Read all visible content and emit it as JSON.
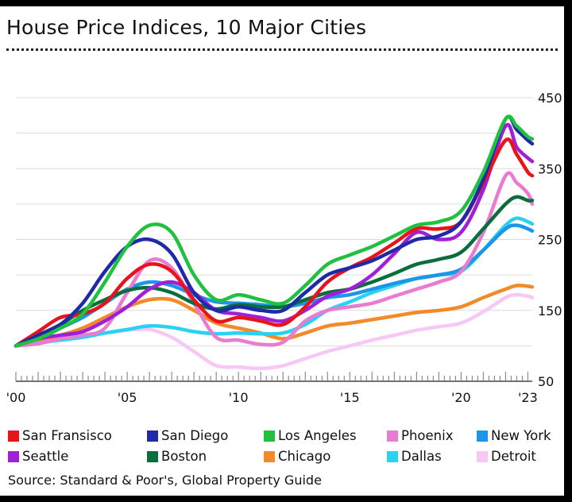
{
  "header": {
    "title": "House Price Indices, 10 Major Cities",
    "source": "Source: Standard & Poor's, Global Property Guide"
  },
  "chart_data": {
    "type": "line",
    "title": "House Price Indices, 10 Major Cities",
    "xlabel": "",
    "ylabel": "",
    "xlim": [
      2000,
      2023.2
    ],
    "ylim": [
      50,
      450
    ],
    "y_ticks": [
      50,
      150,
      250,
      350,
      450
    ],
    "x_ticks": [
      {
        "value": 2000,
        "label": "'00"
      },
      {
        "value": 2005,
        "label": "'05"
      },
      {
        "value": 2010,
        "label": "'10"
      },
      {
        "value": 2015,
        "label": "'15"
      },
      {
        "value": 2020,
        "label": "'20"
      },
      {
        "value": 2023,
        "label": "'23"
      }
    ],
    "y_axis_side": "right",
    "grid": true,
    "legend_position": "bottom",
    "x": [
      2000,
      2001,
      2002,
      2003,
      2004,
      2005,
      2006,
      2007,
      2008,
      2009,
      2010,
      2011,
      2012,
      2013,
      2014,
      2015,
      2016,
      2017,
      2018,
      2019,
      2020,
      2021,
      2022,
      2022.5,
      2023,
      2023.2
    ],
    "series": [
      {
        "name": "San Fransisco",
        "color": "#e8141b",
        "values": [
          100,
          120,
          140,
          145,
          160,
          195,
          215,
          205,
          165,
          135,
          140,
          135,
          130,
          155,
          190,
          210,
          225,
          245,
          265,
          265,
          275,
          330,
          390,
          370,
          345,
          340
        ]
      },
      {
        "name": "Seattle",
        "color": "#a01fd8",
        "values": [
          100,
          110,
          115,
          120,
          135,
          155,
          180,
          190,
          175,
          150,
          145,
          140,
          135,
          150,
          170,
          180,
          200,
          230,
          260,
          250,
          260,
          320,
          410,
          380,
          365,
          360
        ]
      },
      {
        "name": "San Diego",
        "color": "#1f2aa8",
        "values": [
          100,
          115,
          130,
          160,
          205,
          240,
          250,
          230,
          175,
          150,
          155,
          150,
          150,
          175,
          200,
          210,
          220,
          235,
          250,
          255,
          275,
          335,
          420,
          405,
          390,
          385
        ]
      },
      {
        "name": "Boston",
        "color": "#0a6e3c",
        "values": [
          100,
          115,
          130,
          150,
          165,
          178,
          182,
          175,
          160,
          152,
          158,
          155,
          155,
          165,
          175,
          180,
          190,
          202,
          215,
          222,
          232,
          265,
          300,
          310,
          305,
          305
        ]
      },
      {
        "name": "Los Angeles",
        "color": "#20c040",
        "values": [
          100,
          110,
          125,
          145,
          190,
          240,
          270,
          260,
          200,
          165,
          172,
          165,
          160,
          185,
          215,
          228,
          240,
          255,
          270,
          275,
          290,
          345,
          420,
          410,
          395,
          392
        ]
      },
      {
        "name": "Chicago",
        "color": "#f28a2a",
        "values": [
          100,
          108,
          115,
          125,
          140,
          155,
          165,
          165,
          150,
          132,
          125,
          118,
          110,
          118,
          128,
          132,
          137,
          142,
          147,
          150,
          155,
          168,
          180,
          185,
          184,
          183
        ]
      },
      {
        "name": "Phoenix",
        "color": "#e97bd0",
        "values": [
          100,
          103,
          110,
          115,
          125,
          175,
          220,
          210,
          160,
          112,
          108,
          102,
          105,
          135,
          150,
          155,
          160,
          170,
          180,
          190,
          205,
          260,
          340,
          330,
          315,
          300
        ]
      },
      {
        "name": "Dallas",
        "color": "#2ad2f2",
        "values": [
          100,
          104,
          108,
          112,
          118,
          123,
          128,
          126,
          120,
          117,
          118,
          117,
          118,
          130,
          150,
          162,
          175,
          185,
          195,
          200,
          205,
          235,
          270,
          280,
          275,
          272
        ]
      },
      {
        "name": "New York",
        "color": "#1d95e8",
        "values": [
          100,
          110,
          125,
          140,
          160,
          180,
          190,
          185,
          172,
          162,
          160,
          158,
          155,
          160,
          168,
          172,
          180,
          188,
          195,
          200,
          208,
          235,
          265,
          270,
          265,
          262
        ]
      },
      {
        "name": "Detroit",
        "color": "#f5c8f5",
        "values": [
          100,
          105,
          110,
          115,
          118,
          122,
          123,
          112,
          92,
          72,
          70,
          68,
          72,
          82,
          92,
          100,
          108,
          115,
          122,
          127,
          132,
          148,
          168,
          172,
          170,
          168
        ]
      }
    ]
  },
  "legend_rows": [
    [
      {
        "label": "San Fransisco",
        "color": "#e8141b"
      },
      {
        "label": "San Diego",
        "color": "#1f2aa8"
      },
      {
        "label": "Los Angeles",
        "color": "#20c040"
      },
      {
        "label": "Phoenix",
        "color": "#e97bd0"
      },
      {
        "label": "New York",
        "color": "#1d95e8"
      }
    ],
    [
      {
        "label": "Seattle",
        "color": "#a01fd8"
      },
      {
        "label": "Boston",
        "color": "#0a6e3c"
      },
      {
        "label": "Chicago",
        "color": "#f28a2a"
      },
      {
        "label": "Dallas",
        "color": "#2ad2f2"
      },
      {
        "label": "Detroit",
        "color": "#f5c8f5"
      }
    ]
  ]
}
